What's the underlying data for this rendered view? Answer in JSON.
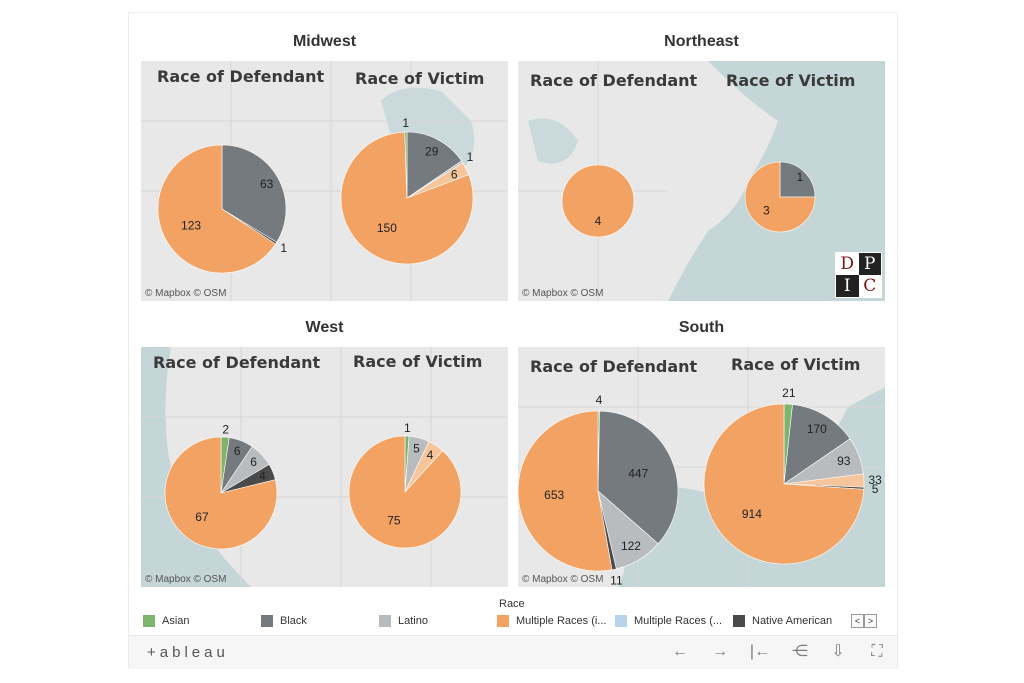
{
  "colors": {
    "asian": "#7fb46b",
    "black": "#757a7f",
    "latino": "#b9bcbf",
    "multiple_races_i": "#f2a364",
    "multiple_races_ii": "#b7d4ea",
    "native_american": "#4a4a4a",
    "extra": "#f6c59c"
  },
  "regions": [
    {
      "id": "midwest",
      "title": "Midwest",
      "defendant_label": "Race of Defendant",
      "victim_label": "Race of Victim",
      "map_credit": "© Mapbox  © OSM"
    },
    {
      "id": "northeast",
      "title": "Northeast",
      "defendant_label": "Race of Defendant",
      "victim_label": "Race of Victim",
      "map_credit": "© Mapbox  © OSM"
    },
    {
      "id": "west",
      "title": "West",
      "defendant_label": "Race of Defendant",
      "victim_label": "Race of Victim",
      "map_credit": "© Mapbox  © OSM"
    },
    {
      "id": "south",
      "title": "South",
      "defendant_label": "Race of Defendant",
      "victim_label": "Race of Victim",
      "map_credit": "© Mapbox  © OSM"
    }
  ],
  "logo_letters": [
    "D",
    "P",
    "I",
    "C"
  ],
  "chart_data": [
    {
      "type": "pie",
      "region": "Midwest",
      "title": "Race of Defendant",
      "series": [
        {
          "name": "Black",
          "value": 63,
          "color": "black"
        },
        {
          "name": "Native American",
          "value": 1,
          "color": "native_american"
        },
        {
          "name": "Multiple Races (i...",
          "value": 123,
          "color": "multiple_races_i"
        }
      ]
    },
    {
      "type": "pie",
      "region": "Midwest",
      "title": "Race of Victim",
      "series": [
        {
          "name": "Black",
          "value": 29,
          "color": "black"
        },
        {
          "name": "Latino",
          "value": 1,
          "color": "latino"
        },
        {
          "name": "Other",
          "value": 6,
          "color": "extra"
        },
        {
          "name": "Multiple Races (i...",
          "value": 150,
          "color": "multiple_races_i"
        },
        {
          "name": "Asian",
          "value": 1,
          "color": "asian"
        }
      ]
    },
    {
      "type": "pie",
      "region": "Northeast",
      "title": "Race of Defendant",
      "series": [
        {
          "name": "Multiple Races (i...",
          "value": 4,
          "color": "multiple_races_i"
        }
      ]
    },
    {
      "type": "pie",
      "region": "Northeast",
      "title": "Race of Victim",
      "series": [
        {
          "name": "Black",
          "value": 1,
          "color": "black"
        },
        {
          "name": "Multiple Races (i...",
          "value": 3,
          "color": "multiple_races_i"
        }
      ]
    },
    {
      "type": "pie",
      "region": "West",
      "title": "Race of Defendant",
      "series": [
        {
          "name": "Asian",
          "value": 2,
          "color": "asian"
        },
        {
          "name": "Black",
          "value": 6,
          "color": "black"
        },
        {
          "name": "Latino",
          "value": 6,
          "color": "latino"
        },
        {
          "name": "Native American",
          "value": 4,
          "color": "native_american"
        },
        {
          "name": "Multiple Races (i...",
          "value": 67,
          "color": "multiple_races_i"
        }
      ]
    },
    {
      "type": "pie",
      "region": "West",
      "title": "Race of Victim",
      "series": [
        {
          "name": "Asian",
          "value": 1,
          "color": "asian"
        },
        {
          "name": "Latino",
          "value": 5,
          "color": "latino"
        },
        {
          "name": "Other",
          "value": 4,
          "color": "extra"
        },
        {
          "name": "Multiple Races (i...",
          "value": 75,
          "color": "multiple_races_i"
        }
      ]
    },
    {
      "type": "pie",
      "region": "South",
      "title": "Race of Defendant",
      "series": [
        {
          "name": "Asian",
          "value": 4,
          "color": "asian"
        },
        {
          "name": "Black",
          "value": 447,
          "color": "black"
        },
        {
          "name": "Latino",
          "value": 122,
          "color": "latino"
        },
        {
          "name": "Native American",
          "value": 11,
          "color": "native_american"
        },
        {
          "name": "Multiple Races (i...",
          "value": 653,
          "color": "multiple_races_i"
        }
      ]
    },
    {
      "type": "pie",
      "region": "South",
      "title": "Race of Victim",
      "series": [
        {
          "name": "Asian",
          "value": 21,
          "color": "asian"
        },
        {
          "name": "Black",
          "value": 170,
          "color": "black"
        },
        {
          "name": "Latino",
          "value": 93,
          "color": "latino"
        },
        {
          "name": "Other",
          "value": 33,
          "color": "extra"
        },
        {
          "name": "Native American",
          "value": 5,
          "color": "native_american"
        },
        {
          "name": "Multiple Races (i...",
          "value": 914,
          "color": "multiple_races_i"
        }
      ]
    }
  ],
  "legend": {
    "title": "Race",
    "items": [
      {
        "label": "Asian",
        "color": "asian"
      },
      {
        "label": "Black",
        "color": "black"
      },
      {
        "label": "Latino",
        "color": "latino"
      },
      {
        "label": "Multiple Races (i...",
        "color": "multiple_races_i"
      },
      {
        "label": "Multiple Races (...",
        "color": "multiple_races_ii"
      },
      {
        "label": "Native American",
        "color": "native_american"
      }
    ],
    "prev_glyph": "<",
    "next_glyph": ">"
  },
  "toolbar": {
    "brand": "+ableau",
    "undo": "←",
    "redo": "→",
    "revert": "|←",
    "share": "⋲",
    "download": "⇩",
    "fullscreen": "⛶"
  }
}
